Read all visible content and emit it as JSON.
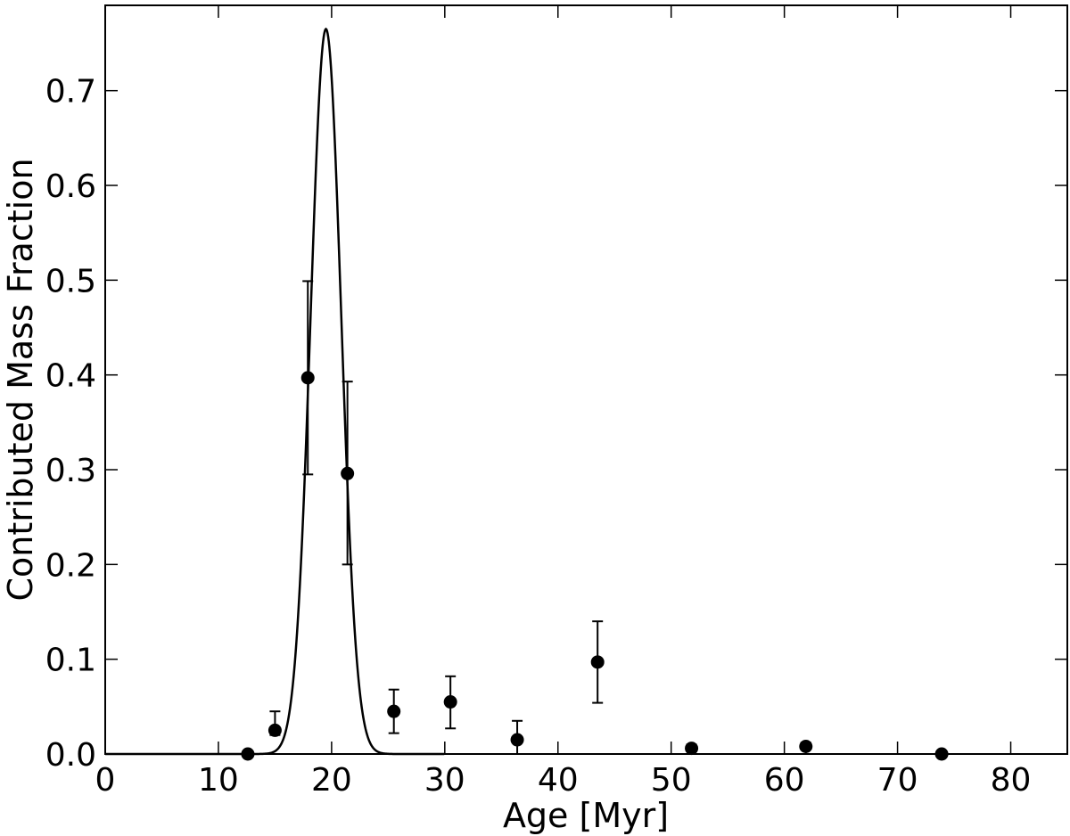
{
  "chart_data": {
    "type": "scatter",
    "xlabel": "Age [Myr]",
    "ylabel": "Contributed Mass Fraction",
    "xlim": [
      0,
      85
    ],
    "ylim": [
      0,
      0.79
    ],
    "x_ticks": [
      0,
      10,
      20,
      30,
      40,
      50,
      60,
      70,
      80
    ],
    "y_ticks": [
      0.0,
      0.1,
      0.2,
      0.3,
      0.4,
      0.5,
      0.6,
      0.7
    ],
    "x_tick_labels": [
      "0",
      "10",
      "20",
      "30",
      "40",
      "50",
      "60",
      "70",
      "80"
    ],
    "y_tick_labels": [
      "0.0",
      "0.1",
      "0.2",
      "0.3",
      "0.4",
      "0.5",
      "0.6",
      "0.7"
    ],
    "grid": false,
    "points": [
      {
        "x": 12.6,
        "y": 0.0,
        "err_low": 0.0,
        "err_high": 0.0
      },
      {
        "x": 15.0,
        "y": 0.025,
        "err_low": 0.02,
        "err_high": 0.045
      },
      {
        "x": 17.9,
        "y": 0.397,
        "err_low": 0.295,
        "err_high": 0.499
      },
      {
        "x": 21.4,
        "y": 0.296,
        "err_low": 0.2,
        "err_high": 0.393
      },
      {
        "x": 25.5,
        "y": 0.045,
        "err_low": 0.022,
        "err_high": 0.068
      },
      {
        "x": 30.5,
        "y": 0.055,
        "err_low": 0.027,
        "err_high": 0.082
      },
      {
        "x": 36.4,
        "y": 0.015,
        "err_low": 0.0,
        "err_high": 0.035
      },
      {
        "x": 43.5,
        "y": 0.097,
        "err_low": 0.054,
        "err_high": 0.14
      },
      {
        "x": 51.8,
        "y": 0.006,
        "err_low": 0.0,
        "err_high": 0.01
      },
      {
        "x": 61.9,
        "y": 0.008,
        "err_low": 0.0,
        "err_high": 0.012
      },
      {
        "x": 73.9,
        "y": 0.0,
        "err_low": 0.0,
        "err_high": 0.0
      }
    ],
    "curve": {
      "type": "gaussian",
      "peak_x": 19.5,
      "peak_y": 0.765,
      "sigma": 1.35
    }
  }
}
